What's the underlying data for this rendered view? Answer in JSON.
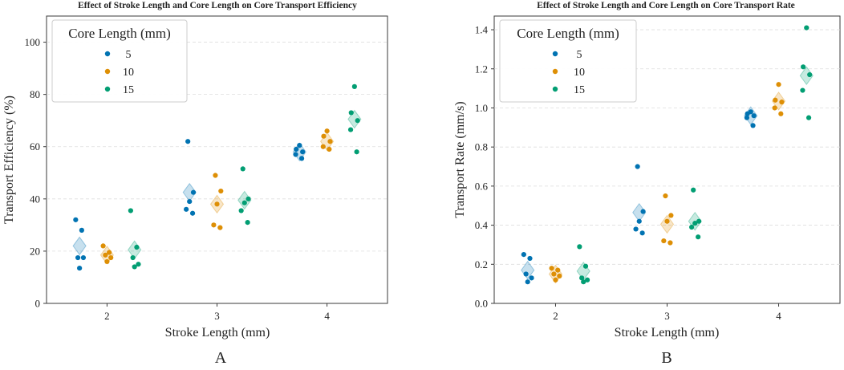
{
  "colors": {
    "5": "#0173b2",
    "10": "#de8f05",
    "15": "#029e73"
  },
  "panel_labels": [
    "A",
    "B"
  ],
  "chart_data": [
    {
      "type": "scatter",
      "title": "Effect of Stroke Length and Core Length on Core Transport Efficiency",
      "xlabel": "Stroke Length (mm)",
      "ylabel": "Transport Efficiency (%)",
      "categories": [
        "2",
        "3",
        "4"
      ],
      "xlim": [
        1.45,
        4.55
      ],
      "ylim": [
        0,
        110
      ],
      "yticks": [
        "0",
        "20",
        "40",
        "60",
        "80",
        "100"
      ],
      "grid": "horizontal dashed",
      "legend": {
        "title": "Core Length (mm)",
        "placement": "top-left",
        "entries": [
          "5",
          "10",
          "15"
        ]
      },
      "series": [
        {
          "name": "5",
          "groups": [
            {
              "x": 2,
              "points": [
                32,
                28,
                17.5,
                17.5,
                13.5
              ],
              "mean": 22
            },
            {
              "x": 3,
              "points": [
                62,
                42.5,
                39,
                36,
                34.5
              ],
              "mean": 42.5
            },
            {
              "x": 4,
              "points": [
                60.5,
                59,
                58,
                57,
                55.5
              ],
              "mean": 58
            }
          ]
        },
        {
          "name": "10",
          "groups": [
            {
              "x": 2,
              "points": [
                22,
                19.5,
                18.5,
                17.5,
                16
              ],
              "mean": 18.5
            },
            {
              "x": 3,
              "points": [
                49,
                43,
                38,
                30,
                29
              ],
              "mean": 38
            },
            {
              "x": 4,
              "points": [
                66,
                64,
                62,
                60,
                59
              ],
              "mean": 62
            }
          ]
        },
        {
          "name": "15",
          "groups": [
            {
              "x": 2,
              "points": [
                35.5,
                21.5,
                17.5,
                15,
                14
              ],
              "mean": 20.5
            },
            {
              "x": 3,
              "points": [
                51.5,
                40,
                38.5,
                35.5,
                31
              ],
              "mean": 39.5
            },
            {
              "x": 4,
              "points": [
                83,
                73,
                70,
                66.5,
                58
              ],
              "mean": 70.5
            }
          ]
        }
      ]
    },
    {
      "type": "scatter",
      "title": "Effect of Stroke Length and Core Length on Core Transport Rate",
      "xlabel": "Stroke Length (mm)",
      "ylabel": "Transport Rate (mm/s)",
      "categories": [
        "2",
        "3",
        "4"
      ],
      "xlim": [
        1.45,
        4.55
      ],
      "ylim": [
        0,
        1.47
      ],
      "yticks": [
        "0.0",
        "0.2",
        "0.4",
        "0.6",
        "0.8",
        "1.0",
        "1.2",
        "1.4"
      ],
      "grid": "horizontal dashed",
      "legend": {
        "title": "Core Length (mm)",
        "placement": "top-left",
        "entries": [
          "5",
          "10",
          "15"
        ]
      },
      "series": [
        {
          "name": "5",
          "groups": [
            {
              "x": 2,
              "points": [
                0.25,
                0.23,
                0.15,
                0.13,
                0.11
              ],
              "mean": 0.17
            },
            {
              "x": 3,
              "points": [
                0.7,
                0.47,
                0.42,
                0.38,
                0.36
              ],
              "mean": 0.465
            },
            {
              "x": 4,
              "points": [
                0.98,
                0.97,
                0.96,
                0.95,
                0.91
              ],
              "mean": 0.96
            }
          ]
        },
        {
          "name": "10",
          "groups": [
            {
              "x": 2,
              "points": [
                0.18,
                0.17,
                0.15,
                0.14,
                0.12
              ],
              "mean": 0.15
            },
            {
              "x": 3,
              "points": [
                0.55,
                0.45,
                0.42,
                0.32,
                0.31
              ],
              "mean": 0.405
            },
            {
              "x": 4,
              "points": [
                1.12,
                1.04,
                1.03,
                1.0,
                0.97
              ],
              "mean": 1.035
            }
          ]
        },
        {
          "name": "15",
          "groups": [
            {
              "x": 2,
              "points": [
                0.29,
                0.19,
                0.13,
                0.12,
                0.11
              ],
              "mean": 0.165
            },
            {
              "x": 3,
              "points": [
                0.58,
                0.42,
                0.41,
                0.39,
                0.34
              ],
              "mean": 0.42
            },
            {
              "x": 4,
              "points": [
                1.41,
                1.21,
                1.17,
                1.09,
                0.95
              ],
              "mean": 1.165
            }
          ]
        }
      ]
    }
  ]
}
